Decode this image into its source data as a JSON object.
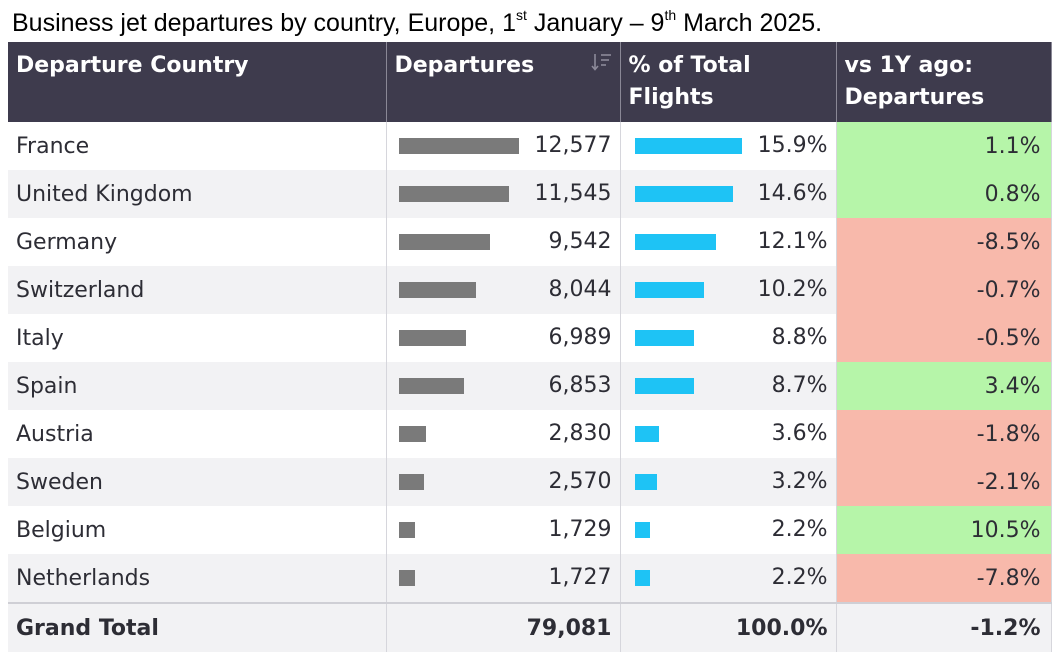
{
  "title": {
    "main": "Business jet departures by country, Europe, 1",
    "sup1": "st",
    "mid": " January – 9",
    "sup2": "th",
    "end": " March 2025."
  },
  "headers": {
    "country": "Departure Country",
    "departures": "Departures",
    "pct_line1": "% of Total",
    "pct_line2": "Flights",
    "yoy_line1": "vs 1Y ago:",
    "yoy_line2": "Departures"
  },
  "colors": {
    "header_bg": "#3e3b4d",
    "departures_bar": "#7a7a7a",
    "pct_bar": "#1ec3f5",
    "positive": "#b6f5a9",
    "negative": "#f8b9ab"
  },
  "chart_data": {
    "type": "table",
    "columns": [
      "Departure Country",
      "Departures",
      "% of Total Flights",
      "vs 1Y ago: Departures"
    ],
    "rows": [
      {
        "country": "France",
        "departures": 12577,
        "departures_label": "12,577",
        "pct": 15.9,
        "pct_label": "15.9%",
        "yoy": 1.1,
        "yoy_label": "1.1%"
      },
      {
        "country": "United Kingdom",
        "departures": 11545,
        "departures_label": "11,545",
        "pct": 14.6,
        "pct_label": "14.6%",
        "yoy": 0.8,
        "yoy_label": "0.8%"
      },
      {
        "country": "Germany",
        "departures": 9542,
        "departures_label": "9,542",
        "pct": 12.1,
        "pct_label": "12.1%",
        "yoy": -8.5,
        "yoy_label": "-8.5%"
      },
      {
        "country": "Switzerland",
        "departures": 8044,
        "departures_label": "8,044",
        "pct": 10.2,
        "pct_label": "10.2%",
        "yoy": -0.7,
        "yoy_label": "-0.7%"
      },
      {
        "country": "Italy",
        "departures": 6989,
        "departures_label": "6,989",
        "pct": 8.8,
        "pct_label": "8.8%",
        "yoy": -0.5,
        "yoy_label": "-0.5%"
      },
      {
        "country": "Spain",
        "departures": 6853,
        "departures_label": "6,853",
        "pct": 8.7,
        "pct_label": "8.7%",
        "yoy": 3.4,
        "yoy_label": "3.4%"
      },
      {
        "country": "Austria",
        "departures": 2830,
        "departures_label": "2,830",
        "pct": 3.6,
        "pct_label": "3.6%",
        "yoy": -1.8,
        "yoy_label": "-1.8%"
      },
      {
        "country": "Sweden",
        "departures": 2570,
        "departures_label": "2,570",
        "pct": 3.2,
        "pct_label": "3.2%",
        "yoy": -2.1,
        "yoy_label": "-2.1%"
      },
      {
        "country": "Belgium",
        "departures": 1729,
        "departures_label": "1,729",
        "pct": 2.2,
        "pct_label": "2.2%",
        "yoy": 10.5,
        "yoy_label": "10.5%"
      },
      {
        "country": "Netherlands",
        "departures": 1727,
        "departures_label": "1,727",
        "pct": 2.2,
        "pct_label": "2.2%",
        "yoy": -7.8,
        "yoy_label": "-7.8%"
      }
    ],
    "total": {
      "label": "Grand Total",
      "departures": 79081,
      "departures_label": "79,081",
      "pct": 100.0,
      "pct_label": "100.0%",
      "yoy": -1.2,
      "yoy_label": "-1.2%"
    }
  }
}
